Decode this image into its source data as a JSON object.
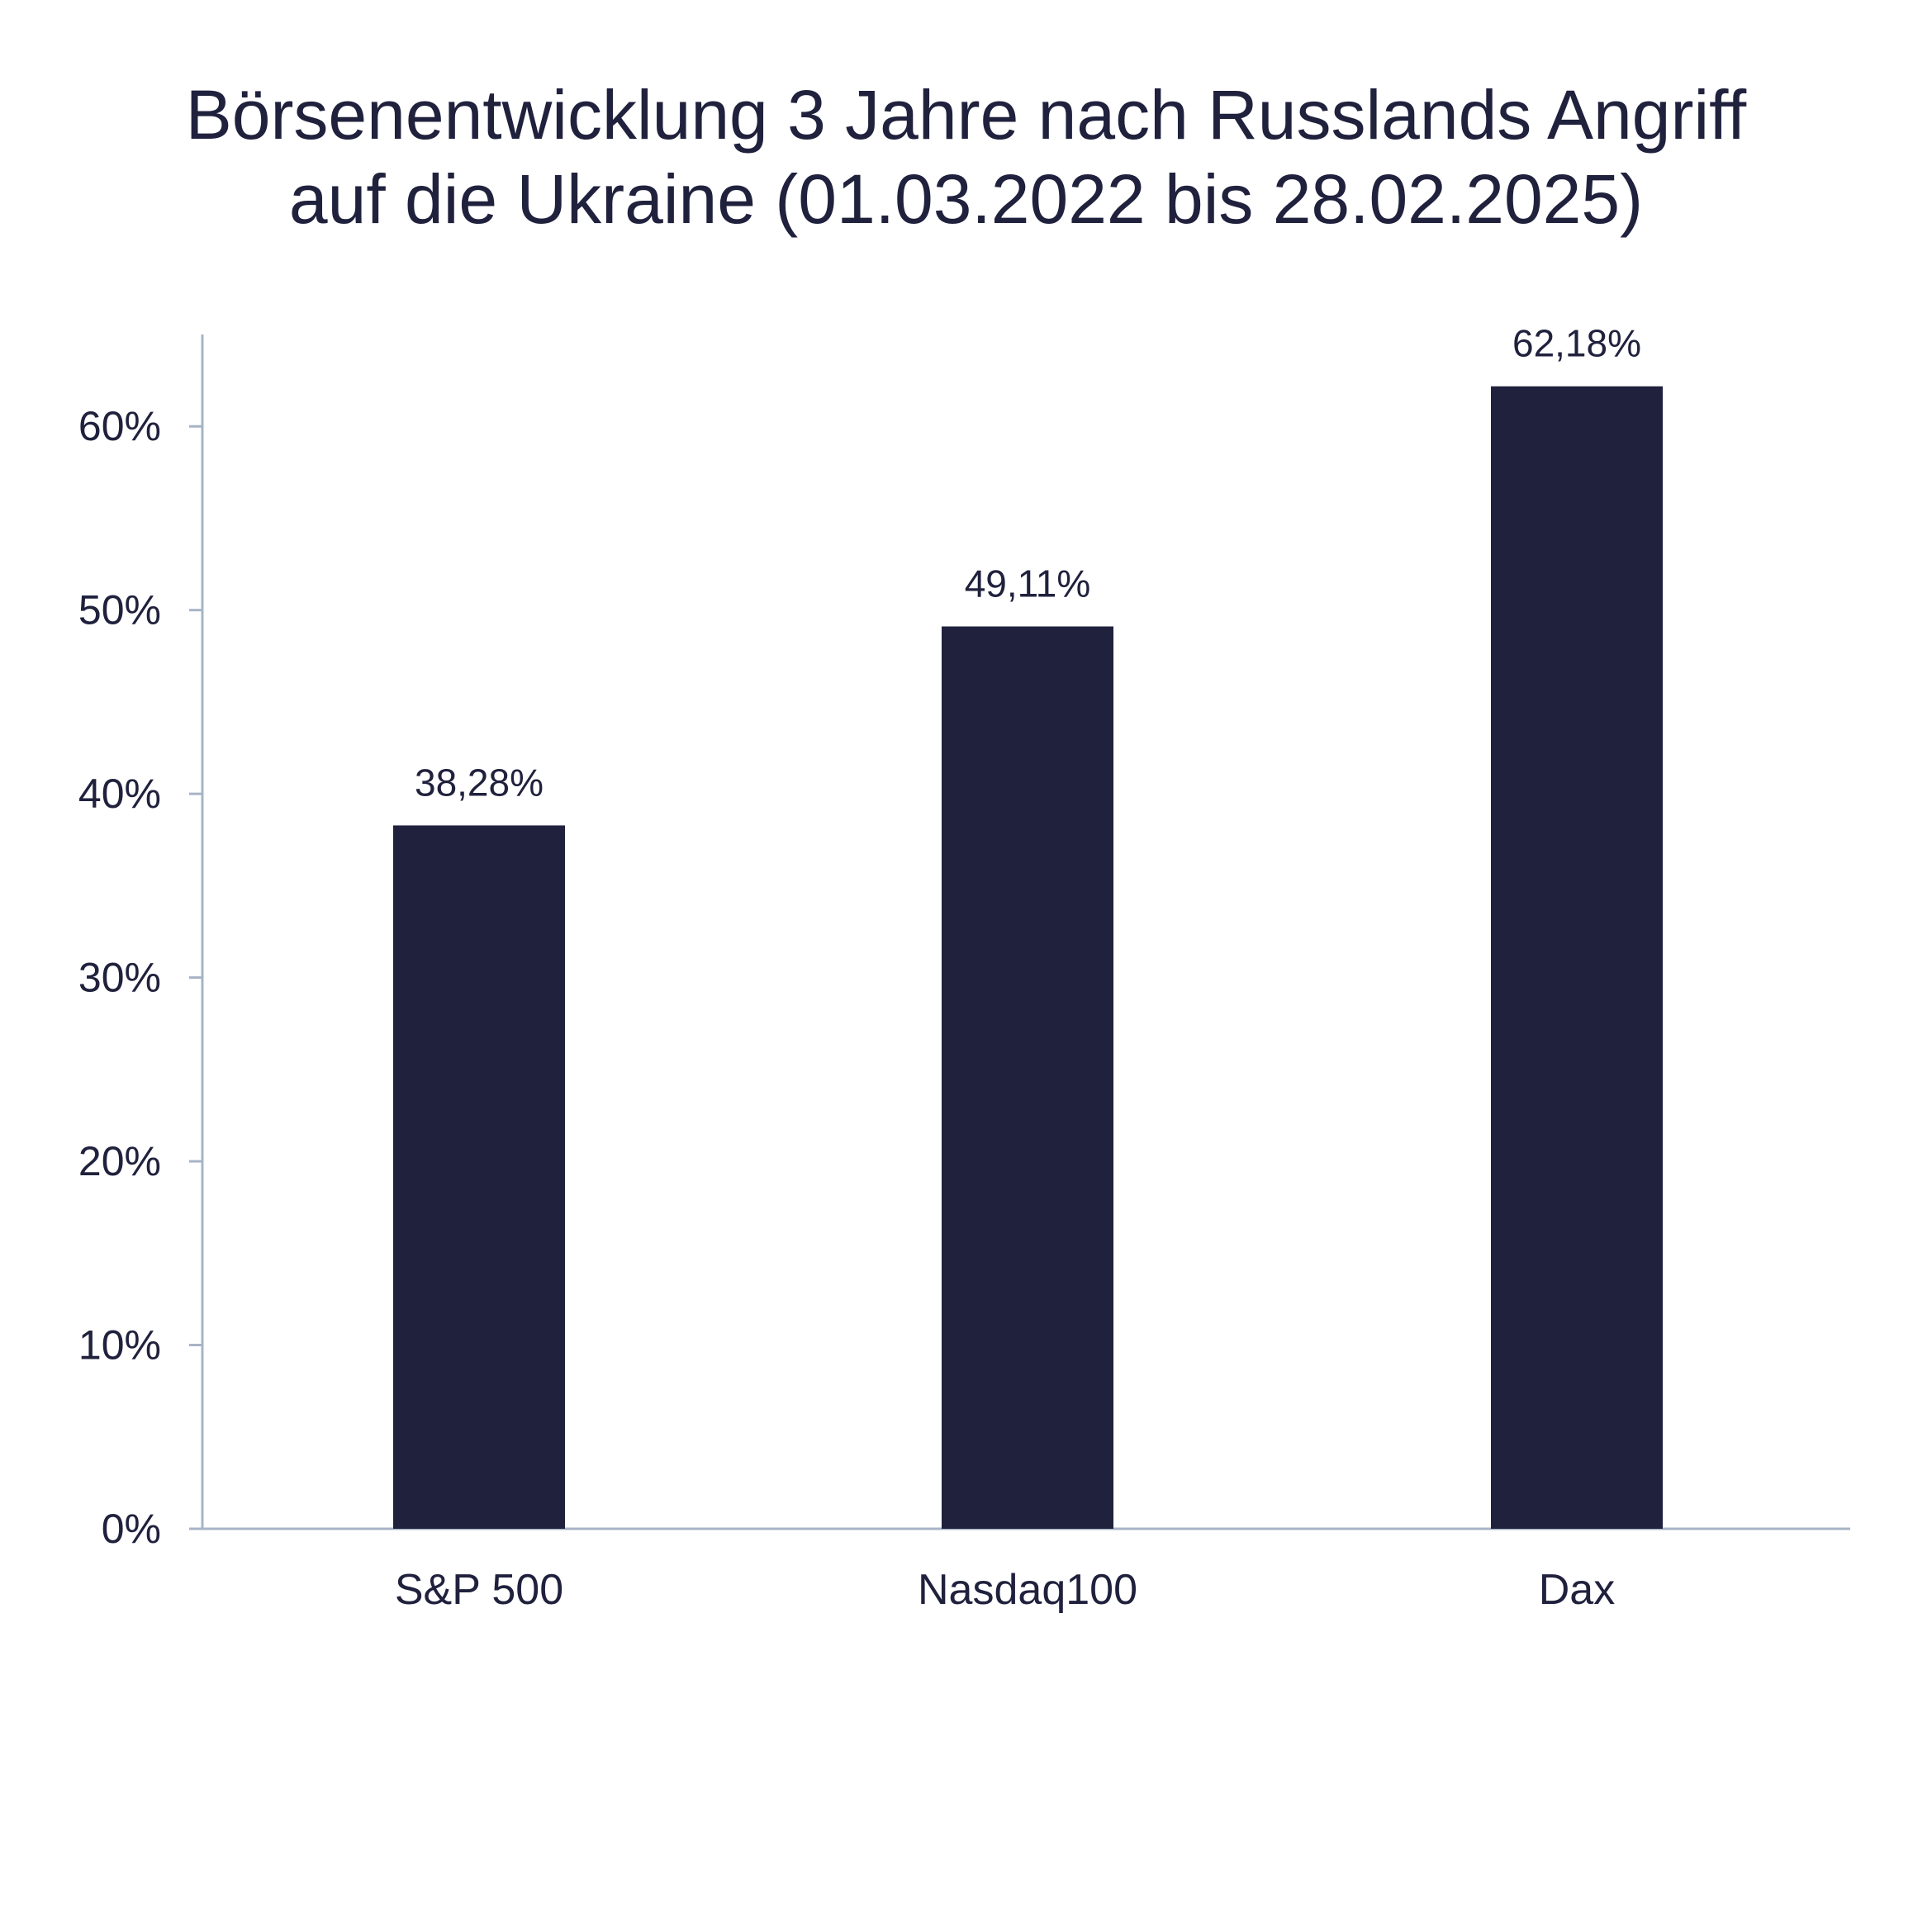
{
  "chart_data": {
    "type": "bar",
    "title_lines": [
      "Börsenentwicklung 3 Jahre nach Russlands Angriff",
      "auf die Ukraine (01.03.2022 bis 28.02.2025)"
    ],
    "categories": [
      "S&P 500",
      "Nasdaq100",
      "Dax"
    ],
    "values": [
      38.28,
      49.11,
      62.18
    ],
    "value_labels": [
      "38,28%",
      "49,11%",
      "62,18%"
    ],
    "y_ticks": [
      0,
      10,
      20,
      30,
      40,
      50,
      60
    ],
    "y_tick_labels": [
      "0%",
      "10%",
      "20%",
      "30%",
      "40%",
      "50%",
      "60%"
    ],
    "ylim": [
      0,
      65
    ],
    "xlabel": "",
    "ylabel": "",
    "grid": false,
    "legend": "none",
    "bar_color": "#20213d",
    "axis_color": "#a7b4c6"
  }
}
